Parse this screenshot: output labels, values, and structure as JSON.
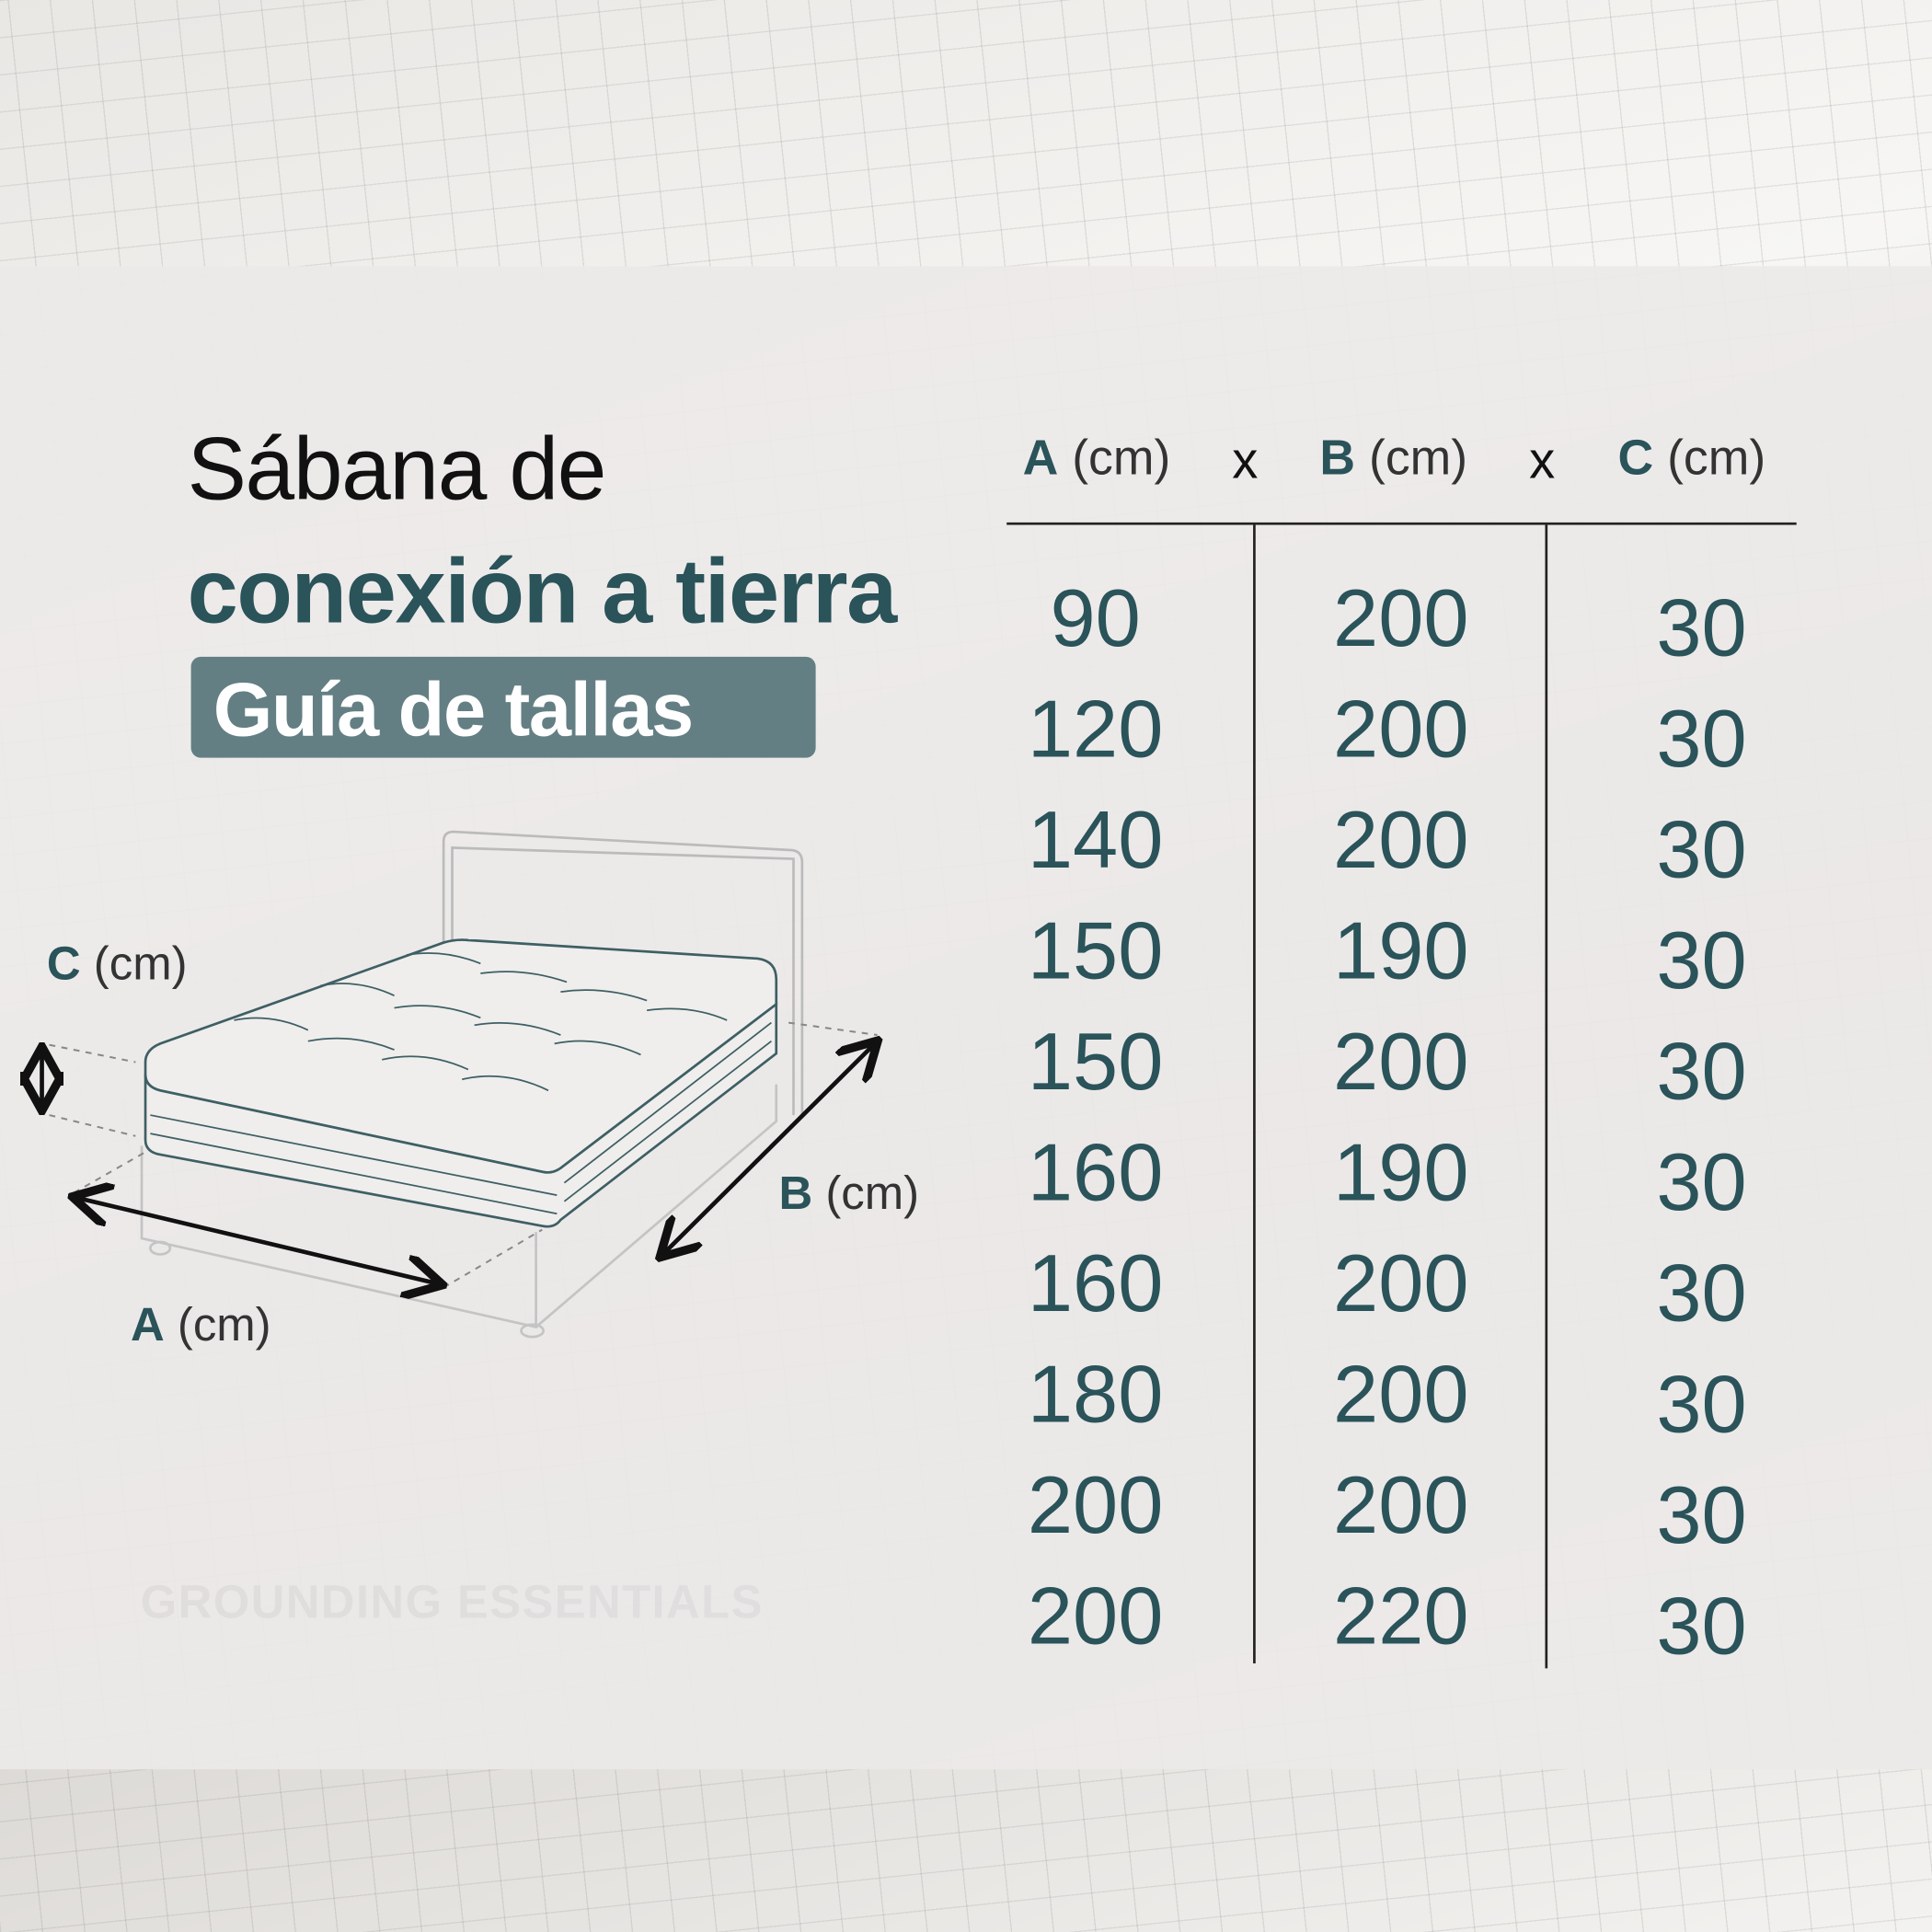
{
  "title": {
    "line1": "Sábana de",
    "line2": "conexión a tierra",
    "badge": "Guía de tallas"
  },
  "table": {
    "headers": [
      {
        "letter": "A",
        "unit": "(cm)"
      },
      {
        "letter": "B",
        "unit": "(cm)"
      },
      {
        "letter": "C",
        "unit": "(cm)"
      }
    ],
    "separator": "x",
    "rows": [
      [
        "90",
        "200",
        "30"
      ],
      [
        "120",
        "200",
        "30"
      ],
      [
        "140",
        "200",
        "30"
      ],
      [
        "150",
        "190",
        "30"
      ],
      [
        "150",
        "200",
        "30"
      ],
      [
        "160",
        "190",
        "30"
      ],
      [
        "160",
        "200",
        "30"
      ],
      [
        "180",
        "200",
        "30"
      ],
      [
        "200",
        "200",
        "30"
      ],
      [
        "200",
        "220",
        "30"
      ]
    ]
  },
  "diagram": {
    "label_c": {
      "letter": "C",
      "unit": "(cm)"
    },
    "label_b": {
      "letter": "B",
      "unit": "(cm)"
    },
    "label_a": {
      "letter": "A",
      "unit": "(cm)"
    }
  },
  "watermark": "GROUNDING ESSENTIALS",
  "colors": {
    "accent": "#2a535a",
    "badge": "#637f83"
  }
}
